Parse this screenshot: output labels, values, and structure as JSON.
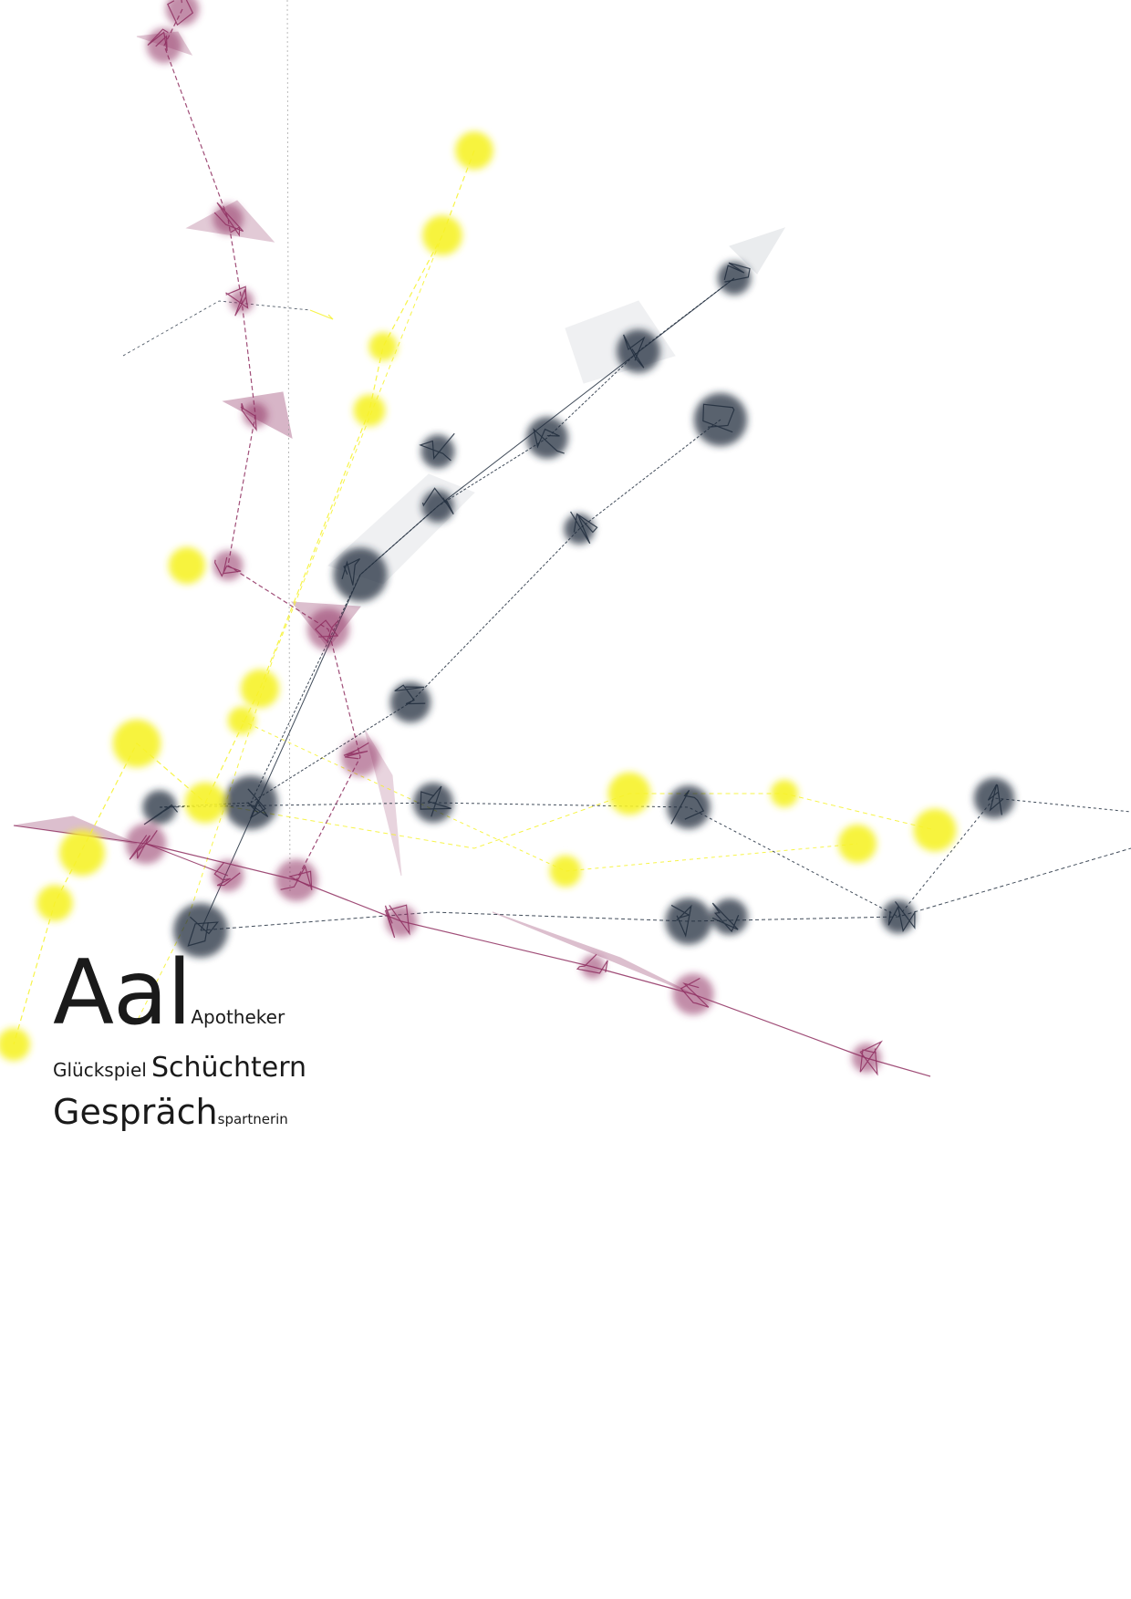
{
  "palette": {
    "background": "#ffffff",
    "yellow": "#f6f22a",
    "magenta": "#8f2f60",
    "navy": "#1f2b3c",
    "text": "#1a1a1a"
  },
  "title_block": {
    "word_main": "Aal",
    "word_main_suffix": "Apotheker",
    "word_second_prefix": "Glückspiel",
    "word_second": "Schüchtern",
    "word_third": "Gespräch",
    "word_third_suffix": "spartnerin"
  }
}
